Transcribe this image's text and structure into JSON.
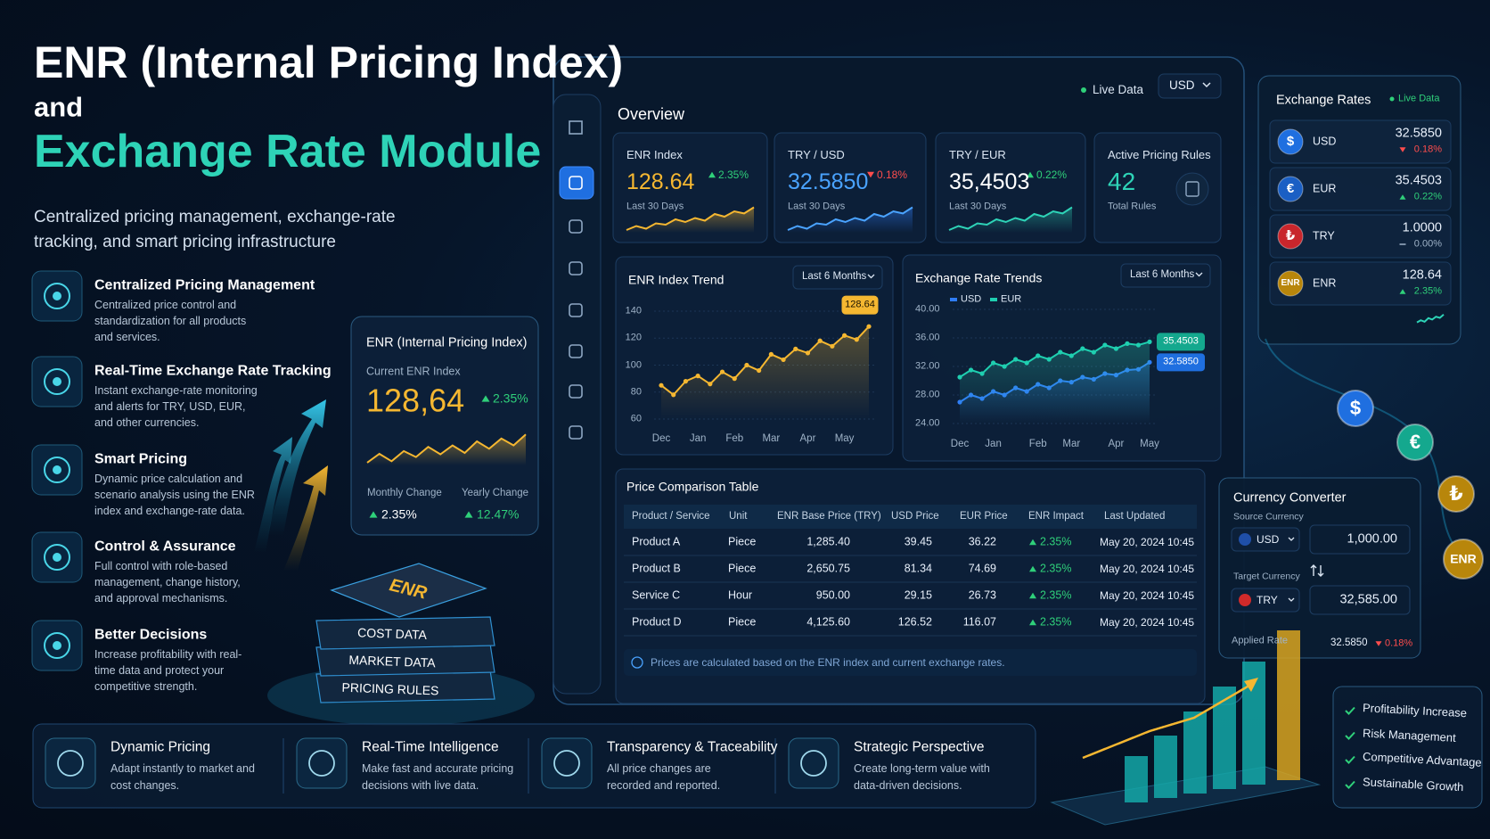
{
  "header": {
    "title_line1": "ENR (Internal Pricing Index)",
    "title_line2": "and",
    "title_line3": "Exchange Rate Module",
    "subtitle": "Centralized pricing management, exchange-rate tracking, and smart pricing infrastructure"
  },
  "features": [
    {
      "title": "Centralized Pricing Management",
      "desc": "Centralized price control and standardization for all products and services."
    },
    {
      "title": "Real-Time Exchange Rate Tracking",
      "desc": "Instant exchange-rate monitoring and alerts for TRY, USD, EUR, and other currencies."
    },
    {
      "title": "Smart Pricing",
      "desc": "Dynamic price calculation and scenario analysis using the ENR index and exchange-rate data."
    },
    {
      "title": "Control & Assurance",
      "desc": "Full control with role-based management, change history, and approval mechanisms."
    },
    {
      "title": "Better Decisions",
      "desc": "Increase profitability with real-time data and protect your competitive strength."
    }
  ],
  "enr_card": {
    "title": "ENR (Internal Pricing Index)",
    "label": "Current ENR Index",
    "value": "128,64",
    "change": "2.35%",
    "monthly_label": "Monthly Change",
    "monthly_value": "2.35%",
    "yearly_label": "Yearly Change",
    "yearly_value": "12.47%"
  },
  "stack": [
    "ENR",
    "COST DATA",
    "MARKET DATA",
    "PRICING RULES"
  ],
  "dashboard": {
    "live": "Live Data",
    "currency": "USD",
    "overview": "Overview",
    "kpis": [
      {
        "title": "ENR Index",
        "value": "128.64",
        "change": "2.35%",
        "trend": "up",
        "sub": "Last 30 Days"
      },
      {
        "title": "TRY / USD",
        "value": "32.5850",
        "change": "0.18%",
        "trend": "down",
        "sub": "Last 30 Days"
      },
      {
        "title": "TRY / EUR",
        "value": "35,4503",
        "change": "0.22%",
        "trend": "up",
        "sub": "Last 30 Days"
      },
      {
        "title": "Active Pricing Rules",
        "value": "42",
        "sub": "Total Rules"
      }
    ]
  },
  "chart_data": [
    {
      "type": "line",
      "title": "ENR Index Trend",
      "period": "Last 6 Months",
      "categories": [
        "Dec",
        null,
        null,
        "Jan",
        null,
        null,
        "Feb",
        null,
        null,
        "Mar",
        null,
        null,
        "Apr",
        null,
        null,
        "May",
        null,
        null
      ],
      "series": [
        {
          "name": "ENR",
          "color": "#f5b731",
          "values": [
            85,
            78,
            88,
            92,
            86,
            95,
            90,
            100,
            96,
            108,
            104,
            112,
            109,
            118,
            114,
            122,
            119,
            128.64
          ]
        }
      ],
      "ylim": [
        60,
        140
      ],
      "yticks": [
        60,
        80,
        100,
        120,
        140
      ],
      "grid": true
    },
    {
      "type": "line",
      "title": "Exchange Rate Trends",
      "period": "Last 6 Months",
      "categories": [
        "Dec",
        null,
        null,
        "Jan",
        null,
        null,
        null,
        "Feb",
        null,
        null,
        "Mar",
        null,
        null,
        null,
        "Apr",
        null,
        null,
        "May"
      ],
      "series": [
        {
          "name": "USD",
          "color": "#2f7df6",
          "values": [
            27,
            28,
            27.5,
            28.5,
            28,
            29,
            28.5,
            29.5,
            29,
            30,
            29.8,
            30.5,
            30.2,
            31,
            30.8,
            31.5,
            31.6,
            32.585
          ],
          "value_labels": [
            null,
            null,
            null,
            null,
            null,
            null,
            null,
            null,
            null,
            null,
            null,
            null,
            null,
            null,
            null,
            null,
            null,
            "32.5850"
          ]
        },
        {
          "name": "EUR",
          "color": "#1fcfb0",
          "values": [
            30.5,
            31.5,
            31,
            32.5,
            32,
            33,
            32.5,
            33.5,
            33,
            34,
            33.5,
            34.5,
            34,
            35,
            34.5,
            35.2,
            35,
            35.4503
          ]
        }
      ],
      "ylim": [
        24,
        40
      ],
      "yticks": [
        {
          "value": 24,
          "label": "24.00"
        },
        {
          "value": 28,
          "label": "28.00"
        },
        {
          "value": 32,
          "label": "32.00"
        },
        {
          "value": 36,
          "label": "36.00"
        },
        {
          "value": 40,
          "label": "40.00"
        }
      ],
      "grid": true,
      "legend": "top-left"
    }
  ],
  "table": {
    "title": "Price Comparison Table",
    "headers": [
      "Product / Service",
      "Unit",
      "ENR Base Price (TRY)",
      "USD Price",
      "EUR Price",
      "ENR Impact",
      "Last Updated"
    ],
    "rows": [
      [
        "Product A",
        "Piece",
        "1,285.40",
        "39.45",
        "36.22",
        "2.35%",
        "May 20, 2024 10:45"
      ],
      [
        "Product B",
        "Piece",
        "2,650.75",
        "81.34",
        "74.69",
        "2.35%",
        "May 20, 2024 10:45"
      ],
      [
        "Service C",
        "Hour",
        "950.00",
        "29.15",
        "26.73",
        "2.35%",
        "May 20, 2024 10:45"
      ],
      [
        "Product D",
        "Piece",
        "4,125.60",
        "126.52",
        "116.07",
        "2.35%",
        "May 20, 2024 10:45"
      ]
    ],
    "note": "Prices are calculated based on the ENR index and current exchange rates."
  },
  "exchange_rates": {
    "title": "Exchange Rates",
    "live": "Live Data",
    "rows": [
      {
        "code": "USD",
        "symbol": "$",
        "value": "32.5850",
        "change": "0.18%",
        "trend": "down",
        "color": "#1f6fe0"
      },
      {
        "code": "EUR",
        "symbol": "€",
        "value": "35.4503",
        "change": "0.22%",
        "trend": "up",
        "color": "#1a5fc4"
      },
      {
        "code": "TRY",
        "symbol": "₺",
        "value": "1.0000",
        "change": "0.00%",
        "trend": "flat",
        "color": "#c8262c"
      },
      {
        "code": "ENR",
        "symbol": "ENR",
        "value": "128.64",
        "change": "2.35%",
        "trend": "up",
        "color": "#b8860b"
      }
    ]
  },
  "converter": {
    "title": "Currency Converter",
    "source_label": "Source Currency",
    "source_currency": "USD",
    "source_amount": "1,000.00",
    "target_label": "Target Currency",
    "target_currency": "TRY",
    "target_amount": "32,585.00",
    "applied_label": "Applied Rate",
    "applied_rate": "32.5850",
    "applied_change": "0.18%",
    "applied_trend": "down"
  },
  "badges": [
    "$",
    "€",
    "₺",
    "ENR"
  ],
  "bottom": [
    {
      "title": "Dynamic Pricing",
      "desc": "Adapt instantly to market and cost changes."
    },
    {
      "title": "Real-Time Intelligence",
      "desc": "Make fast and accurate pricing decisions with live data."
    },
    {
      "title": "Transparency & Traceability",
      "desc": "All price changes are recorded and reported."
    },
    {
      "title": "Strategic Perspective",
      "desc": "Create long-term value with data-driven decisions."
    }
  ],
  "benefits": [
    "Profitability Increase",
    "Risk Management",
    "Competitive Advantage",
    "Sustainable Growth"
  ]
}
